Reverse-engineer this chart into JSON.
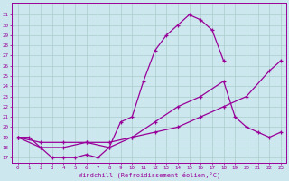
{
  "xlabel": "Windchill (Refroidissement éolien,°C)",
  "line_color": "#990099",
  "bg_color": "#cce8ee",
  "grid_color": "#aacccc",
  "ylim": [
    16.5,
    32.2
  ],
  "xlim": [
    -0.5,
    23.5
  ],
  "yticks": [
    17,
    18,
    19,
    20,
    21,
    22,
    23,
    24,
    25,
    26,
    27,
    28,
    29,
    30,
    31
  ],
  "xticks": [
    0,
    1,
    2,
    3,
    4,
    5,
    6,
    7,
    8,
    9,
    10,
    11,
    12,
    13,
    14,
    15,
    16,
    17,
    18,
    19,
    20,
    21,
    22,
    23
  ],
  "curve1_x": [
    0,
    1,
    2,
    3,
    4,
    5,
    6,
    7,
    8,
    9,
    10,
    11,
    12,
    13,
    14,
    15,
    16,
    17,
    18
  ],
  "curve1_y": [
    19,
    19,
    18,
    17,
    17,
    17,
    17.3,
    17,
    18,
    20.5,
    21,
    24.5,
    27.5,
    29,
    30,
    31,
    30.5,
    29.5,
    26.5
  ],
  "curve2_x": [
    0,
    2,
    4,
    6,
    8,
    10,
    12,
    14,
    16,
    18,
    19,
    20,
    21,
    22,
    23
  ],
  "curve2_y": [
    19,
    18,
    18,
    18.5,
    18,
    19,
    20.5,
    22,
    23,
    24.5,
    21,
    20,
    19.5,
    19,
    19.5
  ],
  "curve3_x": [
    0,
    2,
    4,
    6,
    8,
    10,
    12,
    14,
    16,
    18,
    20,
    22,
    23
  ],
  "curve3_y": [
    19,
    18.5,
    18.5,
    18.5,
    18.5,
    19,
    19.5,
    20,
    21,
    22,
    23,
    25.5,
    26.5
  ]
}
